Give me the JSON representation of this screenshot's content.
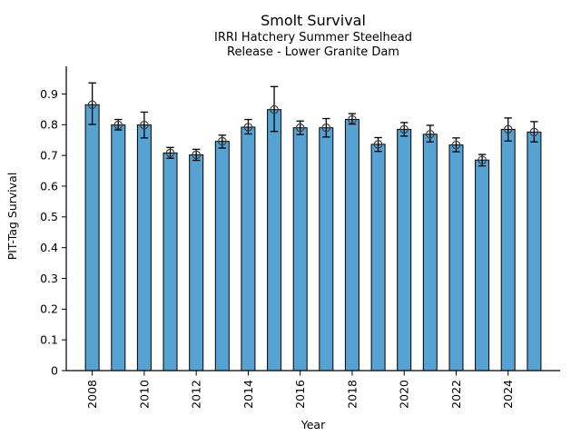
{
  "chart_data": {
    "type": "bar",
    "title": "Smolt Survival",
    "subtitle1": "IRRI Hatchery Summer Steelhead",
    "subtitle2": "Release - Lower Granite Dam",
    "xlabel": "Year",
    "ylabel": "PIT-Tag Survival",
    "categories": [
      "2008",
      "2009",
      "2010",
      "2011",
      "2012",
      "2013",
      "2014",
      "2015",
      "2016",
      "2017",
      "2018",
      "2019",
      "2020",
      "2021",
      "2022",
      "2023",
      "2024",
      "2025"
    ],
    "values": [
      0.865,
      0.799,
      0.799,
      0.708,
      0.702,
      0.746,
      0.792,
      0.849,
      0.79,
      0.79,
      0.817,
      0.736,
      0.785,
      0.769,
      0.734,
      0.685,
      0.785,
      0.776
    ],
    "error_low": [
      0.801,
      0.783,
      0.757,
      0.691,
      0.684,
      0.724,
      0.77,
      0.778,
      0.768,
      0.76,
      0.802,
      0.713,
      0.763,
      0.744,
      0.712,
      0.666,
      0.747,
      0.744
    ],
    "error_high": [
      0.936,
      0.817,
      0.841,
      0.726,
      0.72,
      0.766,
      0.817,
      0.924,
      0.812,
      0.82,
      0.836,
      0.758,
      0.807,
      0.798,
      0.757,
      0.703,
      0.822,
      0.81
    ],
    "ylim": [
      0,
      0.99
    ],
    "ytick_values": [
      0,
      0.1,
      0.2,
      0.3,
      0.4,
      0.5,
      0.6,
      0.7,
      0.8,
      0.9
    ],
    "ytick_labels": [
      "0",
      "0.1",
      "0.2",
      "0.3",
      "0.4",
      "0.5",
      "0.6",
      "0.7",
      "0.8",
      "0.9"
    ],
    "xtick_labeled_years": [
      "2008",
      "2010",
      "2012",
      "2014",
      "2016",
      "2018",
      "2020",
      "2022",
      "2024"
    ],
    "grid": false,
    "legend": "none",
    "marker": "open-circle",
    "colors": {
      "bar_fill": "#56A3D3",
      "bar_edge": "#000000",
      "error_bar": "#000000",
      "marker_edge": "#3d3d3d",
      "axis": "#000000"
    }
  }
}
